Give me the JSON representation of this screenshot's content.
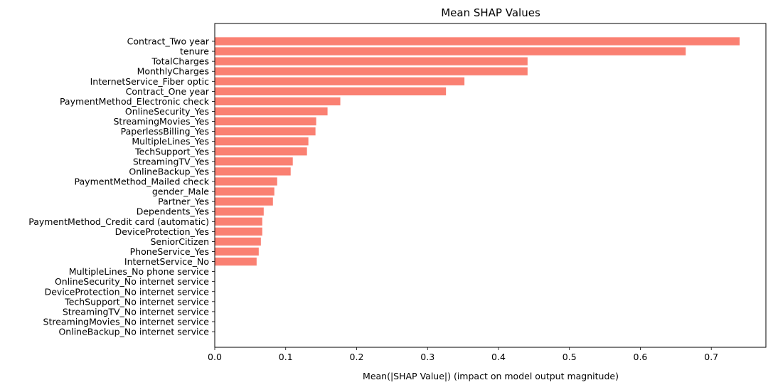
{
  "chart_data": {
    "type": "bar",
    "orientation": "horizontal",
    "title": "Mean SHAP Values",
    "xlabel": "Mean(|SHAP Value|) (impact on model output magnitude)",
    "ylabel": "",
    "xlim": [
      0,
      0.777
    ],
    "xticks": [
      0.0,
      0.1,
      0.2,
      0.3,
      0.4,
      0.5,
      0.6,
      0.7
    ],
    "xtick_labels": [
      "0.0",
      "0.1",
      "0.2",
      "0.3",
      "0.4",
      "0.5",
      "0.6",
      "0.7"
    ],
    "grid": false,
    "bar_color": "#fa8072",
    "categories": [
      "Contract_Two year",
      "tenure",
      "TotalCharges",
      "MonthlyCharges",
      "InternetService_Fiber optic",
      "Contract_One year",
      "PaymentMethod_Electronic check",
      "OnlineSecurity_Yes",
      "StreamingMovies_Yes",
      "PaperlessBilling_Yes",
      "MultipleLines_Yes",
      "TechSupport_Yes",
      "StreamingTV_Yes",
      "OnlineBackup_Yes",
      "PaymentMethod_Mailed check",
      "gender_Male",
      "Partner_Yes",
      "Dependents_Yes",
      "PaymentMethod_Credit card (automatic)",
      "DeviceProtection_Yes",
      "SeniorCitizen",
      "PhoneService_Yes",
      "InternetService_No",
      "MultipleLines_No phone service",
      "OnlineSecurity_No internet service",
      "DeviceProtection_No internet service",
      "TechSupport_No internet service",
      "StreamingTV_No internet service",
      "StreamingMovies_No internet service",
      "OnlineBackup_No internet service"
    ],
    "values": [
      0.74,
      0.664,
      0.441,
      0.441,
      0.352,
      0.326,
      0.177,
      0.159,
      0.143,
      0.142,
      0.132,
      0.13,
      0.11,
      0.107,
      0.088,
      0.084,
      0.082,
      0.069,
      0.067,
      0.067,
      0.065,
      0.062,
      0.059,
      0,
      0,
      0,
      0,
      0,
      0,
      0
    ]
  }
}
